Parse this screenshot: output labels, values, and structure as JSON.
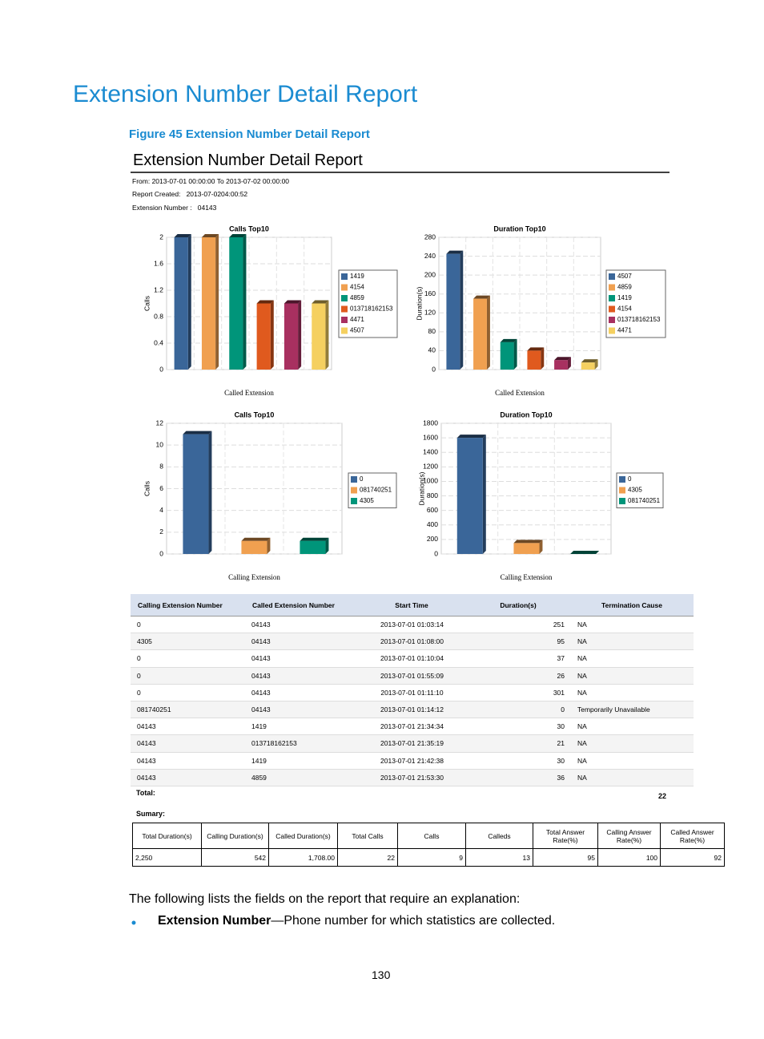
{
  "title": "Extension Number Detail Report",
  "figure_caption": "Figure 45 Extension Number Detail Report",
  "report": {
    "title": "Extension Number Detail Report",
    "from_label": "From:",
    "from": "2013-07-01 00:00:00",
    "to_label": "To",
    "to": "2013-07-02 00:00:00",
    "created_label": "Report Created:",
    "created": "2013-07-0204:00:52",
    "extension_label": "Extension Number :",
    "extension": "04143"
  },
  "chart_data": [
    {
      "type": "bar",
      "title": "Calls Top10",
      "x_label": "Called Extension",
      "y_label": "Calls",
      "categories": [
        "1419",
        "4154",
        "4859",
        "013718162153",
        "4471",
        "4507"
      ],
      "values": [
        2,
        2,
        2,
        1,
        1,
        1
      ],
      "colors": [
        "#3a6699",
        "#f0a050",
        "#00957a",
        "#e05a1e",
        "#a83060",
        "#f5d060"
      ],
      "ylim": [
        0,
        2
      ],
      "yticks": [
        0,
        0.4,
        0.8,
        1.2,
        1.6,
        2
      ],
      "grid": true
    },
    {
      "type": "bar",
      "title": "Duration Top10",
      "x_label": "Called Extension",
      "y_label": "Duration(s)",
      "categories": [
        "4507",
        "4859",
        "1419",
        "4154",
        "013718162153",
        "4471"
      ],
      "values": [
        245,
        150,
        58,
        40,
        20,
        15
      ],
      "colors": [
        "#3a6699",
        "#f0a050",
        "#00957a",
        "#e05a1e",
        "#a83060",
        "#f5d060"
      ],
      "ylim": [
        0,
        280
      ],
      "yticks": [
        0,
        40,
        80,
        120,
        160,
        200,
        240,
        280
      ],
      "grid": true
    },
    {
      "type": "bar",
      "title": "Calls Top10",
      "x_label": "Calling Extension",
      "y_label": "Calls",
      "categories": [
        "0",
        "081740251",
        "4305"
      ],
      "values": [
        11,
        1.2,
        1.2
      ],
      "colors": [
        "#3a6699",
        "#f0a050",
        "#00957a"
      ],
      "ylim": [
        0,
        12
      ],
      "yticks": [
        0,
        2,
        4,
        6,
        8,
        10,
        12
      ],
      "grid": true
    },
    {
      "type": "bar",
      "title": "Duration Top10",
      "x_label": "Calling Extension",
      "y_label": "Duration(s)",
      "categories": [
        "0",
        "4305",
        "081740251"
      ],
      "values": [
        1600,
        150,
        0
      ],
      "colors": [
        "#3a6699",
        "#f0a050",
        "#00957a"
      ],
      "ylim": [
        0,
        1800
      ],
      "yticks": [
        0,
        200,
        400,
        600,
        800,
        1000,
        1200,
        1400,
        1600,
        1800
      ],
      "grid": true
    }
  ],
  "table": {
    "headers": [
      "Calling Extension Number",
      "Called Extension Number",
      "Start Time",
      "Duration(s)",
      "Termination Cause"
    ],
    "rows": [
      [
        "0",
        "04143",
        "2013-07-01 01:03:14",
        "251",
        "NA"
      ],
      [
        "4305",
        "04143",
        "2013-07-01 01:08:00",
        "95",
        "NA"
      ],
      [
        "0",
        "04143",
        "2013-07-01 01:10:04",
        "37",
        "NA"
      ],
      [
        "0",
        "04143",
        "2013-07-01 01:55:09",
        "26",
        "NA"
      ],
      [
        "0",
        "04143",
        "2013-07-01 01:11:10",
        "301",
        "NA"
      ],
      [
        "081740251",
        "04143",
        "2013-07-01 01:14:12",
        "0",
        "Temporarily Unavailable"
      ],
      [
        "04143",
        "1419",
        "2013-07-01 21:34:34",
        "30",
        "NA"
      ],
      [
        "04143",
        "013718162153",
        "2013-07-01 21:35:19",
        "21",
        "NA"
      ],
      [
        "04143",
        "1419",
        "2013-07-01 21:42:38",
        "30",
        "NA"
      ],
      [
        "04143",
        "4859",
        "2013-07-01 21:53:30",
        "36",
        "NA"
      ]
    ]
  },
  "total_label": "Total:",
  "total": "22",
  "summary_label": "Sumary:",
  "summary": {
    "headers": [
      "Total Duration(s)",
      "Calling Duration(s)",
      "Called Duration(s)",
      "Total Calls",
      "Calls",
      "Calleds",
      "Total Answer Rate(%)",
      "Calling Answer Rate(%)",
      "Called Answer Rate(%)"
    ],
    "rows": [
      [
        "2,250",
        "542",
        "1,708.00",
        "22",
        "9",
        "13",
        "95",
        "100",
        "92"
      ]
    ]
  },
  "paragraph": "The following lists the fields on the report that require an explanation:",
  "bullets": [
    {
      "term": "Extension Number",
      "text": "—Phone number for which statistics are collected."
    }
  ],
  "page_number": "130"
}
